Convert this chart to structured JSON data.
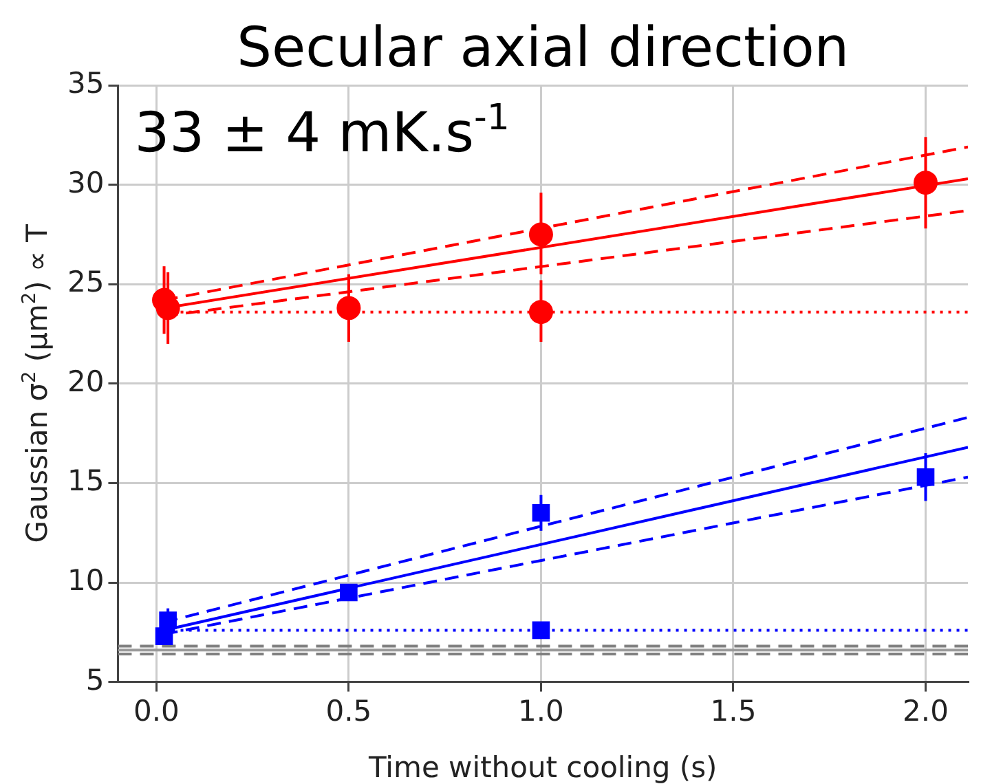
{
  "chart_data": {
    "type": "scatter",
    "title": "Secular axial direction",
    "xlabel": "Time without cooling (s)",
    "ylabel": "Gaussian σ$^{2}$ (μm$^{2}$) ∝ T",
    "annotations": [
      "33 ± 4 mK.s$^{-1}$"
    ],
    "xlim": [
      -0.1,
      2.11
    ],
    "xticks": [
      {
        "value": 0,
        "label": "0.0"
      },
      {
        "value": 0.5,
        "label": "0.5"
      },
      {
        "value": 1,
        "label": "1.0"
      },
      {
        "value": 1.5,
        "label": "1.5"
      },
      {
        "value": 2,
        "label": "2.0"
      }
    ],
    "ylim": [
      5,
      35
    ],
    "yticks": [
      5,
      10,
      15,
      20,
      25,
      30,
      35
    ],
    "grid": true,
    "legend": false,
    "series": [
      {
        "color": "#ff0000",
        "marker": "circle",
        "x": [
          0.03,
          0.5,
          1.0,
          2.0
        ],
        "values": [
          23.8,
          23.8,
          27.5,
          30.1
        ],
        "errors": [
          [
            22.0,
            25.6
          ],
          [
            22.1,
            25.5
          ],
          [
            25.5,
            29.6
          ],
          [
            27.8,
            32.4
          ]
        ]
      },
      {
        "color": "#ff0000",
        "marker": "circle",
        "x": [
          0.02,
          1.0
        ],
        "values": [
          24.2,
          23.6
        ],
        "errors": [
          [
            22.5,
            25.9
          ],
          [
            22.1,
            25.2
          ]
        ]
      },
      {
        "type": "line",
        "color": "#ff0000",
        "line_style": "solid",
        "marker": "none",
        "x": [
          0.02,
          2.11
        ],
        "values": [
          23.8,
          30.3
        ]
      },
      {
        "type": "line",
        "color": "#ff0000",
        "line_style": "dashed",
        "marker": "none",
        "x": [
          0.02,
          2.11
        ],
        "values": [
          24.2,
          31.9
        ]
      },
      {
        "type": "line",
        "color": "#ff0000",
        "line_style": "dashed",
        "marker": "none",
        "x": [
          0.02,
          2.11
        ],
        "values": [
          23.4,
          28.7
        ]
      },
      {
        "type": "line",
        "color": "#ff0000",
        "line_style": "dotted",
        "marker": "none",
        "x": [
          0.02,
          2.11
        ],
        "values": [
          23.6,
          23.6
        ]
      },
      {
        "color": "#0000ff",
        "marker": "square",
        "x": [
          0.03,
          0.5,
          1.0,
          2.0
        ],
        "values": [
          8.1,
          9.5,
          13.5,
          15.3
        ],
        "errors": [
          [
            8.1,
            8.7
          ],
          null,
          [
            12.6,
            14.4
          ],
          [
            14.1,
            16.5
          ]
        ]
      },
      {
        "color": "#0000ff",
        "marker": "square",
        "x": [
          0.02,
          1.0
        ],
        "values": [
          7.3,
          7.6
        ]
      },
      {
        "type": "line",
        "color": "#0000ff",
        "line_style": "solid",
        "marker": "none",
        "x": [
          0.02,
          2.11
        ],
        "values": [
          7.6,
          16.8
        ]
      },
      {
        "type": "line",
        "color": "#0000ff",
        "line_style": "dashed",
        "marker": "none",
        "x": [
          0.02,
          2.11
        ],
        "values": [
          8.0,
          18.3
        ]
      },
      {
        "type": "line",
        "color": "#0000ff",
        "line_style": "dashed",
        "marker": "none",
        "x": [
          0.02,
          2.11
        ],
        "values": [
          7.4,
          15.3
        ]
      },
      {
        "type": "line",
        "color": "#0000ff",
        "line_style": "dotted",
        "marker": "none",
        "x": [
          0.02,
          2.11
        ],
        "values": [
          7.6,
          7.6
        ]
      },
      {
        "type": "line",
        "color": "#999999",
        "line_style": "solid",
        "marker": "none",
        "x": [
          -0.1,
          2.11
        ],
        "values": [
          6.6,
          6.6
        ]
      },
      {
        "type": "line",
        "color": "#808080",
        "line_style": "dashed",
        "marker": "none",
        "x": [
          -0.1,
          2.11
        ],
        "values": [
          6.8,
          6.8
        ]
      },
      {
        "type": "line",
        "color": "#808080",
        "line_style": "dashed",
        "marker": "none",
        "x": [
          -0.1,
          2.11
        ],
        "values": [
          6.4,
          6.4
        ]
      }
    ]
  }
}
